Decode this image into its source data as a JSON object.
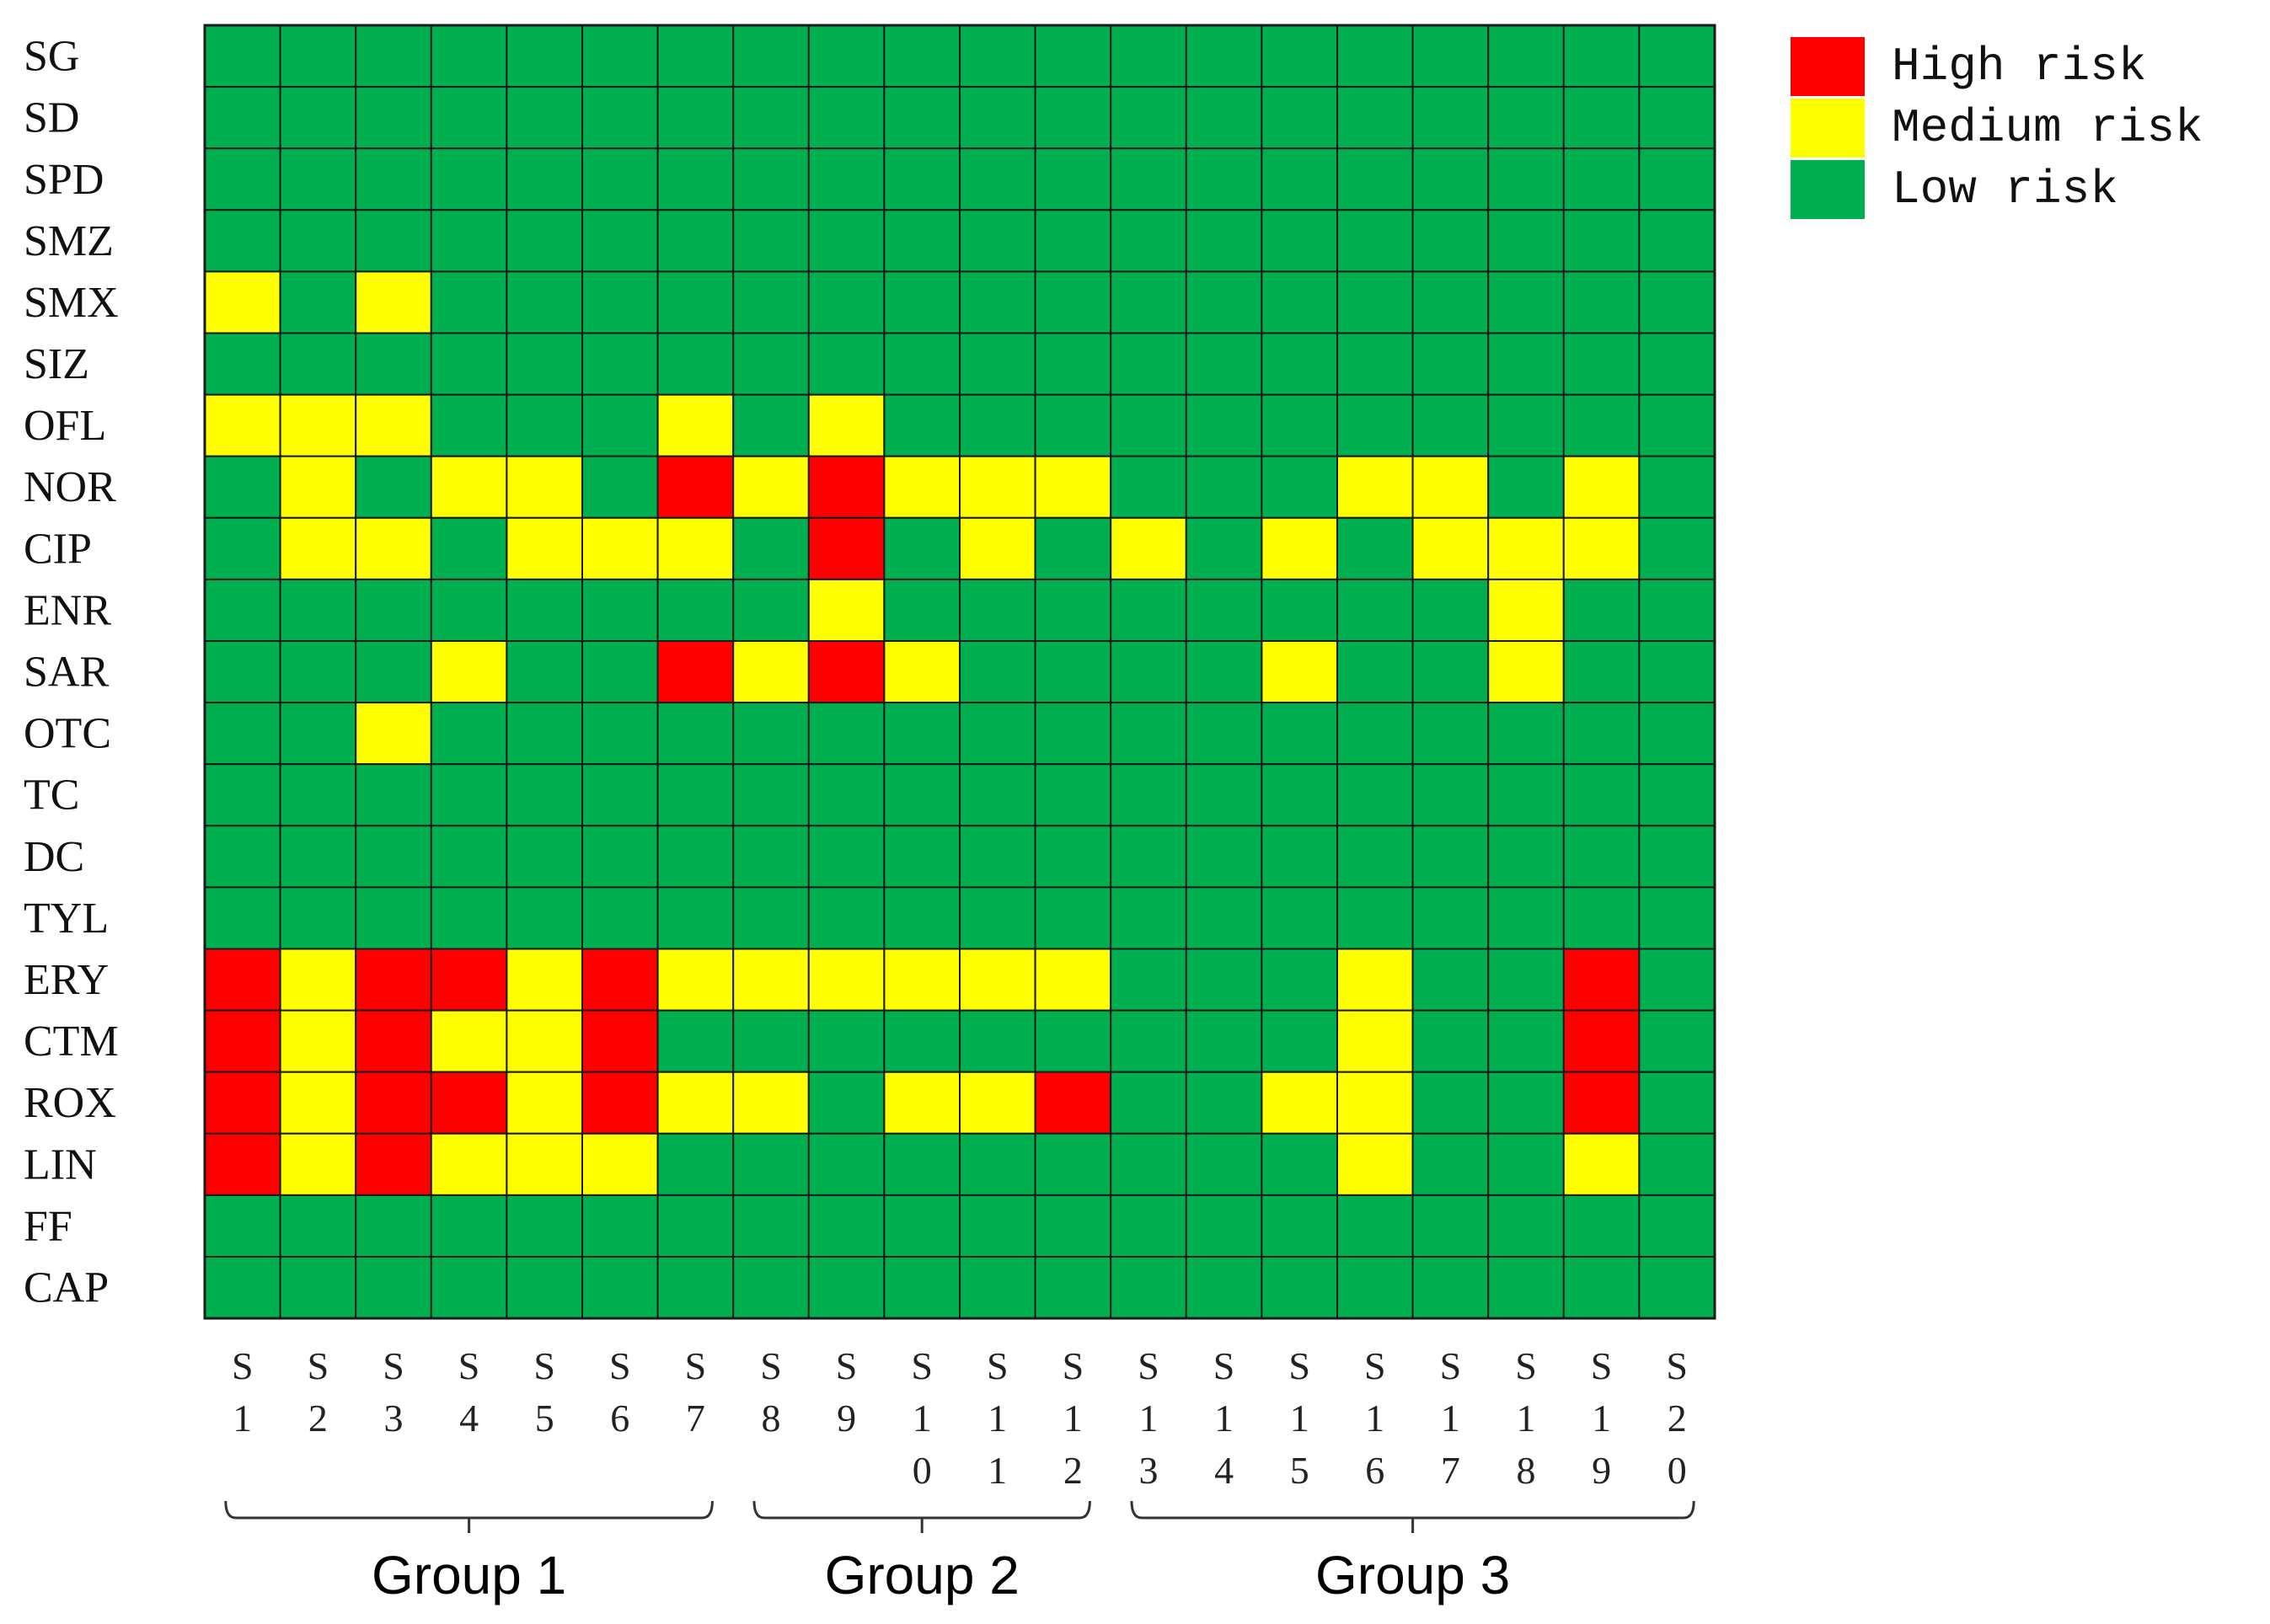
{
  "chart_data": {
    "type": "heatmap",
    "rows": [
      "SG",
      "SD",
      "SPD",
      "SMZ",
      "SMX",
      "SIZ",
      "OFL",
      "NOR",
      "CIP",
      "ENR",
      "SAR",
      "OTC",
      "TC",
      "DC",
      "TYL",
      "ERY",
      "CTM",
      "ROX",
      "LIN",
      "FF",
      "CAP"
    ],
    "columns": [
      "S1",
      "S2",
      "S3",
      "S4",
      "S5",
      "S6",
      "S7",
      "S8",
      "S9",
      "S10",
      "S11",
      "S12",
      "S13",
      "S14",
      "S15",
      "S16",
      "S17",
      "S18",
      "S19",
      "S20"
    ],
    "legend": [
      {
        "key": "H",
        "label": "High risk",
        "color": "#ff0000"
      },
      {
        "key": "M",
        "label": "Medium risk",
        "color": "#ffff00"
      },
      {
        "key": "L",
        "label": "Low risk",
        "color": "#00b050"
      }
    ],
    "values": [
      "LLLLLLLLLLLLLLLLLLLL",
      "LLLLLLLLLLLLLLLLLLLL",
      "LLLLLLLLLLLLLLLLLLLL",
      "LLLLLLLLLLLLLLLLLLLL",
      "MLMLLLLLLLLLLLLLLLLL",
      "LLLLLLLLLLLLLLLLLLLL",
      "MMMLLLMLMLLLLLLLLLLL",
      "LMLMMLHMHMMMLLLMMLML",
      "LMMLMMMLHLMLMLMLMMML",
      "LLLLLLLLMLLLLLLLLMLL",
      "LLLMLLHMHMLLLLMLLMLL",
      "LLMLLLLLLLLLLLLLLLLL",
      "LLLLLLLLLLLLLLLLLLLL",
      "LLLLLLLLLLLLLLLLLLLL",
      "LLLLLLLLLLLLLLLLLLLL",
      "HMHHMHMMMMMMLLLMLLHL",
      "HMHMMHLLLLLLLLLMLLHL",
      "HMHHMHMMLMMHLLMMLLHL",
      "HMHMMMLLLLLLLLLMLLML",
      "LLLLLLLLLLLLLLLLLLLL",
      "LLLLLLLLLLLLLLLLLLLL"
    ],
    "groups": [
      {
        "label": "Group 1",
        "columns": [
          "S1",
          "S2",
          "S3",
          "S4",
          "S5",
          "S6",
          "S7"
        ]
      },
      {
        "label": "Group 2",
        "columns": [
          "S8",
          "S9",
          "S10",
          "S11",
          "S12"
        ]
      },
      {
        "label": "Group 3",
        "columns": [
          "S13",
          "S14",
          "S15",
          "S16",
          "S17",
          "S18",
          "S19",
          "S20"
        ]
      }
    ]
  }
}
